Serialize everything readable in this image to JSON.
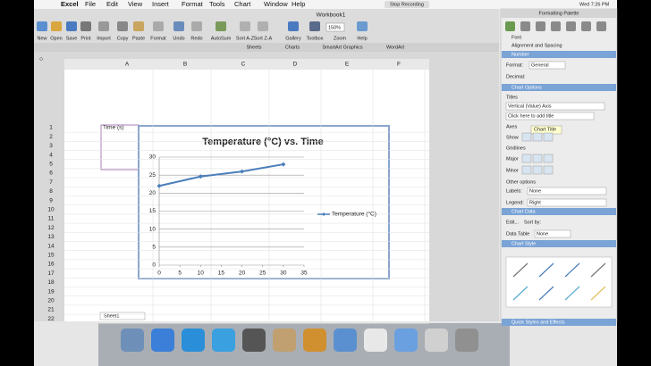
{
  "menu": [
    "Excel",
    "File",
    "Edit",
    "View",
    "Insert",
    "Format",
    "Tools",
    "Chart",
    "Window",
    "Help"
  ],
  "status": {
    "recording": "Stop Recording",
    "time": "Wed 7:26 PM"
  },
  "window_title": "Workbook1",
  "toolbar": [
    "New",
    "Open",
    "Save",
    "Print",
    "Import",
    "Copy",
    "Paste",
    "Format",
    "Undo",
    "Redo",
    "AutoSum",
    "Sort A-Z",
    "Sort Z-A",
    "Gallery",
    "Toolbox",
    "Zoom",
    "Help"
  ],
  "zoom": "150%",
  "ribbon_tabs": [
    "Sheets",
    "Charts",
    "SmartArt Graphics",
    "WordArt"
  ],
  "columns": [
    "A",
    "B",
    "C",
    "D",
    "E",
    "F"
  ],
  "rows": [
    1,
    2,
    3,
    4,
    5,
    6,
    7,
    8,
    9,
    10,
    11,
    12,
    13,
    14,
    15,
    16,
    17,
    18,
    19,
    20,
    21,
    22
  ],
  "cell_a1": "Time (s)",
  "sheet_tab": "Sheet1",
  "palette": {
    "title": "Formatting Palette",
    "font": "Font",
    "alignment": "Alignment and Spacing",
    "number": "Number",
    "format_label": "Format:",
    "format_value": "General",
    "decimal_label": "Decimal:",
    "chart_options": "Chart Options",
    "titles": "Titles",
    "titles_select": "Vertical (Value) Axis",
    "titles_input": "Click here to add title",
    "axes": "Axes",
    "show": "Show",
    "tooltip": "Chart Title",
    "gridlines": "Gridlines",
    "major": "Major",
    "minor": "Minor",
    "other_options": "Other options",
    "labels_label": "Labels:",
    "labels_value": "None",
    "legend_label": "Legend:",
    "legend_value": "Right",
    "chart_data": "Chart Data",
    "edit": "Edit...",
    "sort_by": "Sort by:",
    "data_table": "Data Table",
    "data_table_value": "None",
    "chart_style": "Chart Style",
    "quick_styles": "Quick Styles and Effects"
  },
  "chart_data": {
    "type": "line",
    "title": "Temperature (°C) vs. Time",
    "x": [
      0,
      10,
      20,
      30
    ],
    "series": [
      {
        "name": "Temperature (°C)",
        "color": "#4a7ebb",
        "values": [
          22,
          24.6,
          26,
          28
        ]
      }
    ],
    "xlim": [
      0,
      35
    ],
    "xticks": [
      0,
      5,
      10,
      15,
      20,
      25,
      30,
      35
    ],
    "ylim": [
      0,
      30
    ],
    "yticks": [
      0,
      5,
      10,
      15,
      20,
      25,
      30
    ],
    "grid": true,
    "legend": "right"
  }
}
